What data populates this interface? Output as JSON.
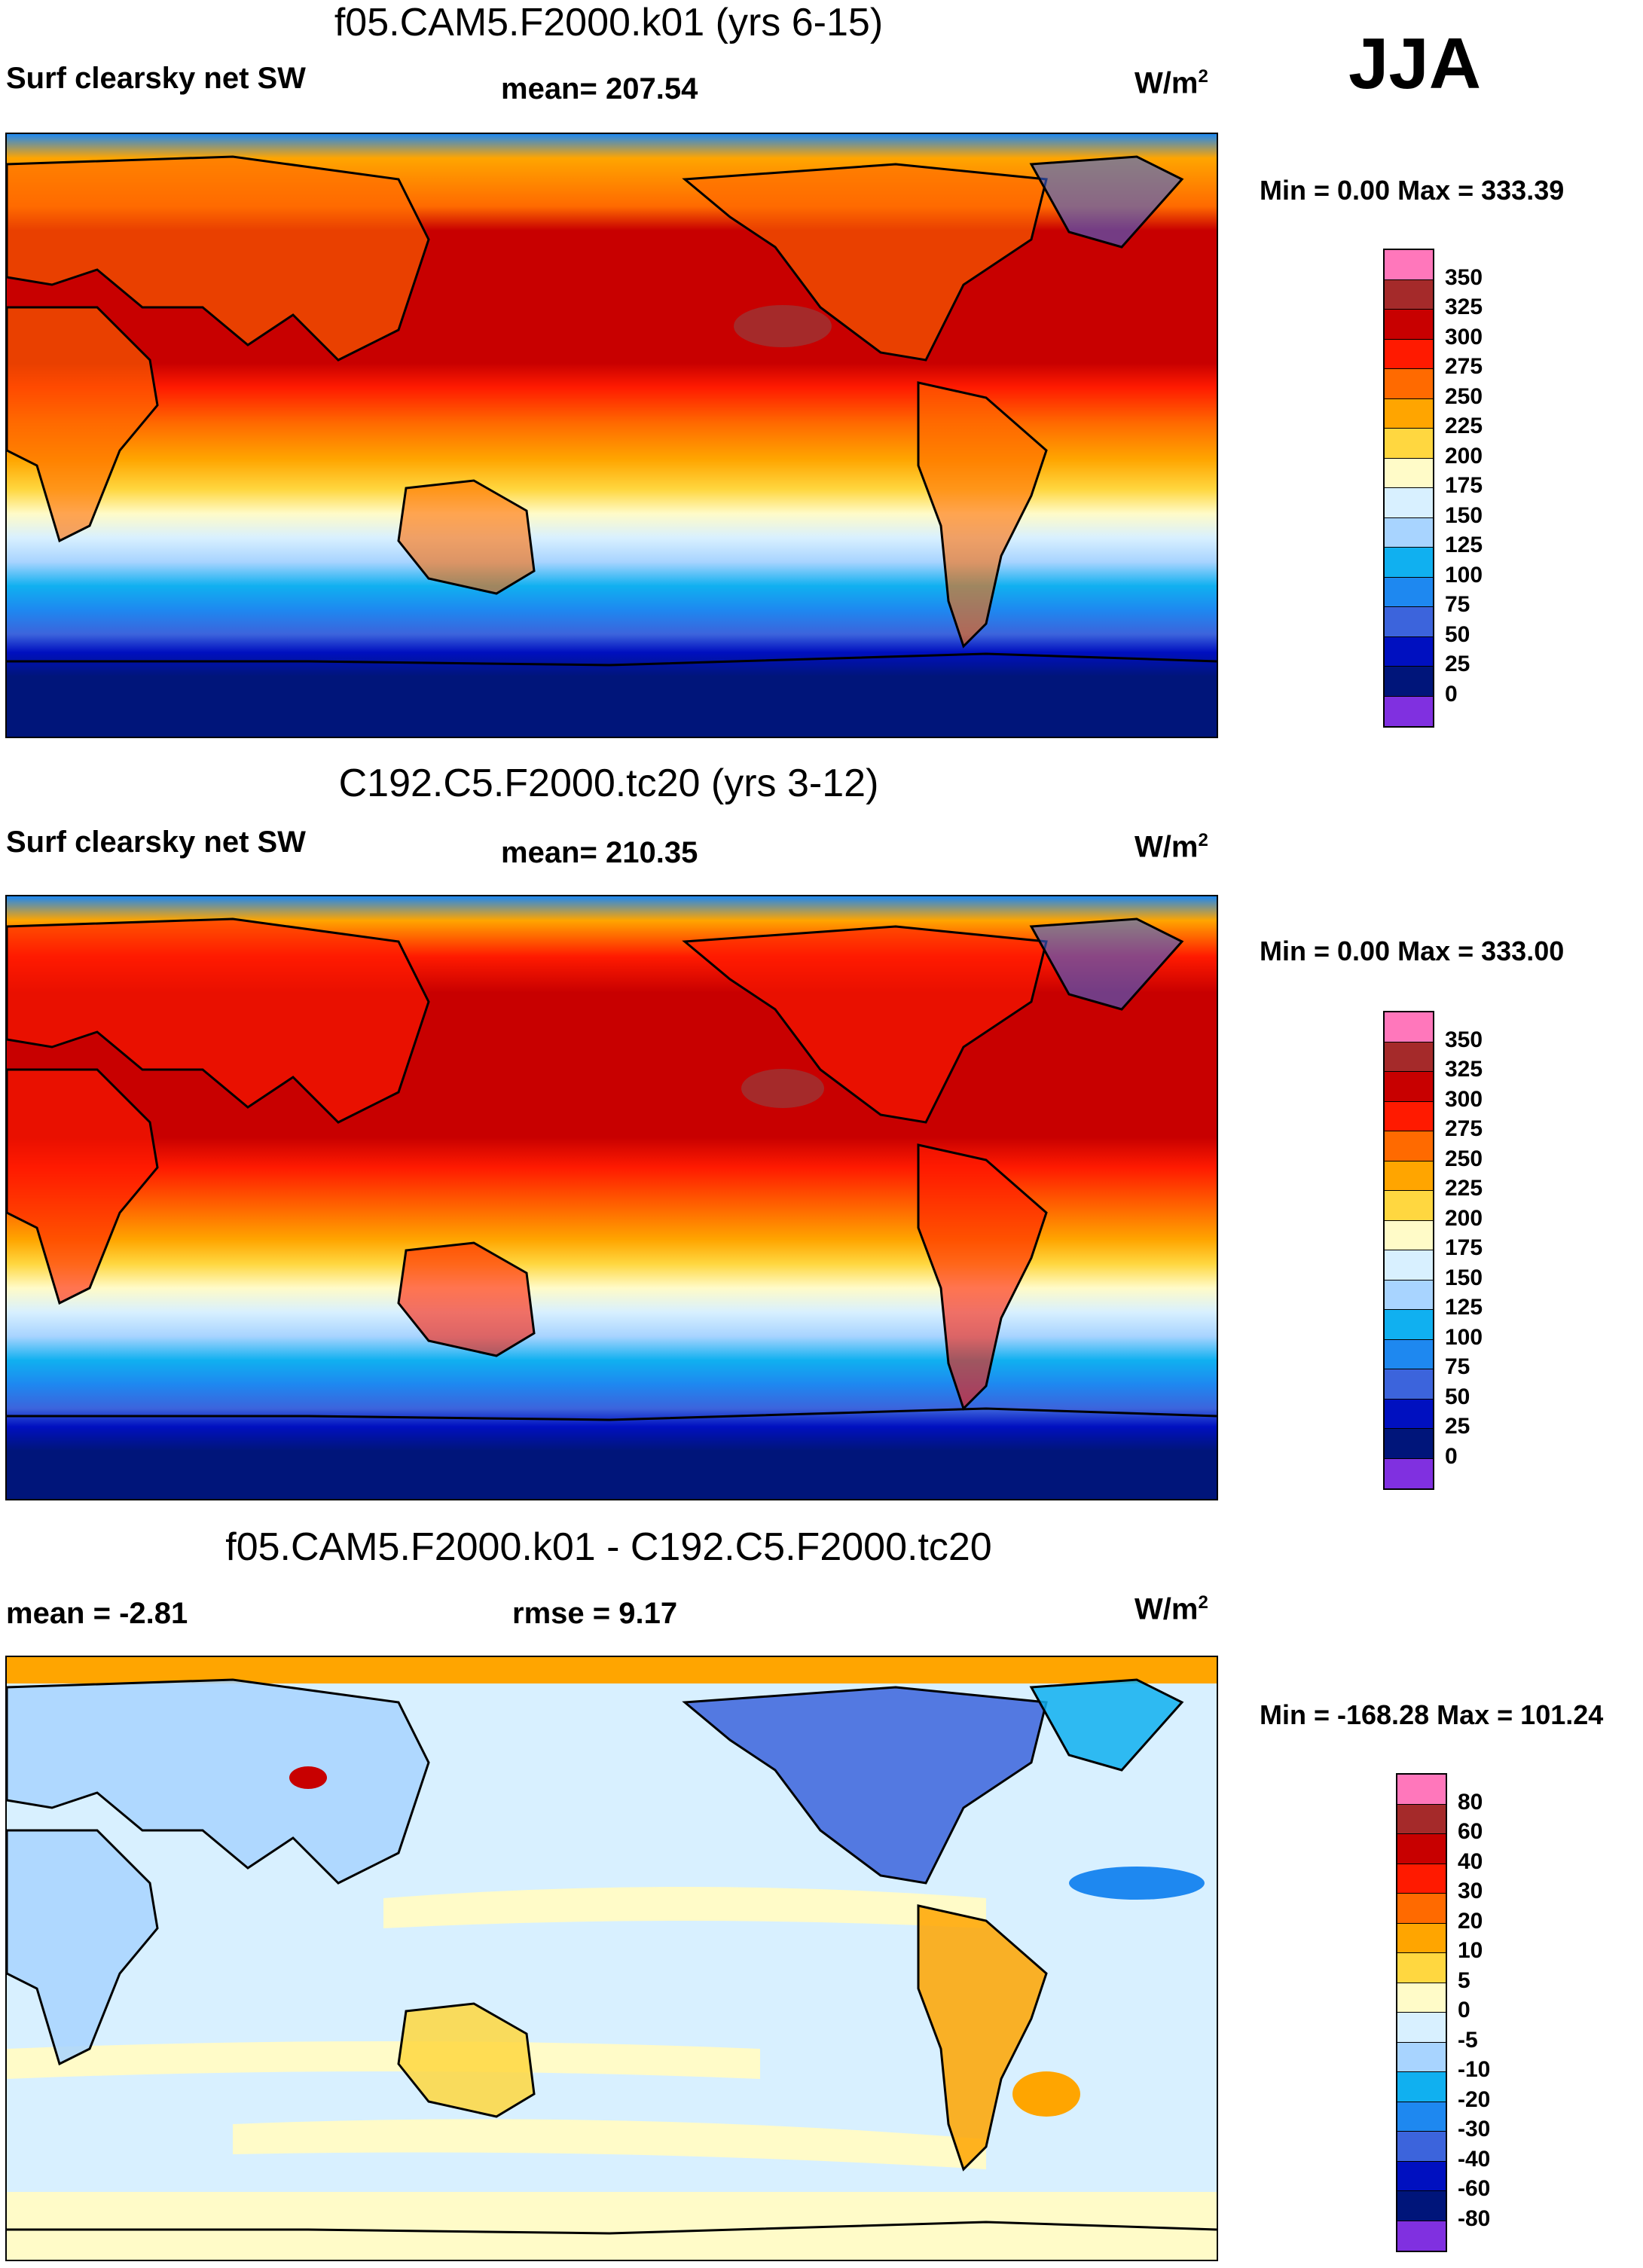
{
  "season": "JJA",
  "panels": [
    {
      "title": "f05.CAM5.F2000.k01 (yrs 6-15)",
      "left_label": "Surf clearsky net SW",
      "center_label": "mean= 207.54",
      "units": "W/m",
      "units_sup": "2",
      "min_max": "Min =   0.00 Max = 333.39"
    },
    {
      "title": "C192.C5.F2000.tc20 (yrs 3-12)",
      "left_label": "Surf clearsky net SW",
      "center_label": "mean= 210.35",
      "units": "W/m",
      "units_sup": "2",
      "min_max": "Min =   0.00 Max = 333.00"
    },
    {
      "title": "f05.CAM5.F2000.k01 - C192.C5.F2000.tc20",
      "left_label": "mean =  -2.81",
      "center_label": "rmse =   9.17",
      "units": "W/m",
      "units_sup": "2",
      "min_max": "Min = -168.28 Max = 101.24"
    }
  ],
  "chart_data": [
    {
      "type": "heatmap",
      "title": "f05.CAM5.F2000.k01 (yrs 6-15)",
      "variable": "Surf clearsky net SW",
      "units": "W/m2",
      "mean": 207.54,
      "min": 0.0,
      "max": 333.39,
      "colorbar_levels": [
        "350",
        "325",
        "300",
        "275",
        "250",
        "225",
        "200",
        "175",
        "150",
        "125",
        "100",
        "75",
        "50",
        "25",
        "0"
      ],
      "colorbar_colors": [
        "#ff77bb",
        "#a52a2a",
        "#c80000",
        "#ff1a00",
        "#ff6a00",
        "#ffa500",
        "#ffd740",
        "#fffbc8",
        "#d8f0ff",
        "#a8d4ff",
        "#10b0f0",
        "#1e88f0",
        "#3c64dc",
        "#0010c0",
        "#00157a",
        "#8030e0"
      ]
    },
    {
      "type": "heatmap",
      "title": "C192.C5.F2000.tc20 (yrs 3-12)",
      "variable": "Surf clearsky net SW",
      "units": "W/m2",
      "mean": 210.35,
      "min": 0.0,
      "max": 333.0,
      "colorbar_levels": [
        "350",
        "325",
        "300",
        "275",
        "250",
        "225",
        "200",
        "175",
        "150",
        "125",
        "100",
        "75",
        "50",
        "25",
        "0"
      ],
      "colorbar_colors": [
        "#ff77bb",
        "#a52a2a",
        "#c80000",
        "#ff1a00",
        "#ff6a00",
        "#ffa500",
        "#ffd740",
        "#fffbc8",
        "#d8f0ff",
        "#a8d4ff",
        "#10b0f0",
        "#1e88f0",
        "#3c64dc",
        "#0010c0",
        "#00157a",
        "#8030e0"
      ]
    },
    {
      "type": "heatmap",
      "title": "f05.CAM5.F2000.k01 - C192.C5.F2000.tc20",
      "units": "W/m2",
      "mean": -2.81,
      "rmse": 9.17,
      "min": -168.28,
      "max": 101.24,
      "colorbar_levels": [
        "80",
        "60",
        "40",
        "30",
        "20",
        "10",
        "5",
        "0",
        "-5",
        "-10",
        "-20",
        "-30",
        "-40",
        "-60",
        "-80"
      ],
      "colorbar_colors": [
        "#ff77bb",
        "#a52a2a",
        "#c80000",
        "#ff1a00",
        "#ff6a00",
        "#ffa500",
        "#ffd740",
        "#fffbc8",
        "#d8f0ff",
        "#a8d4ff",
        "#10b0f0",
        "#1e88f0",
        "#3c64dc",
        "#0010c0",
        "#00157a",
        "#8030e0"
      ]
    }
  ]
}
